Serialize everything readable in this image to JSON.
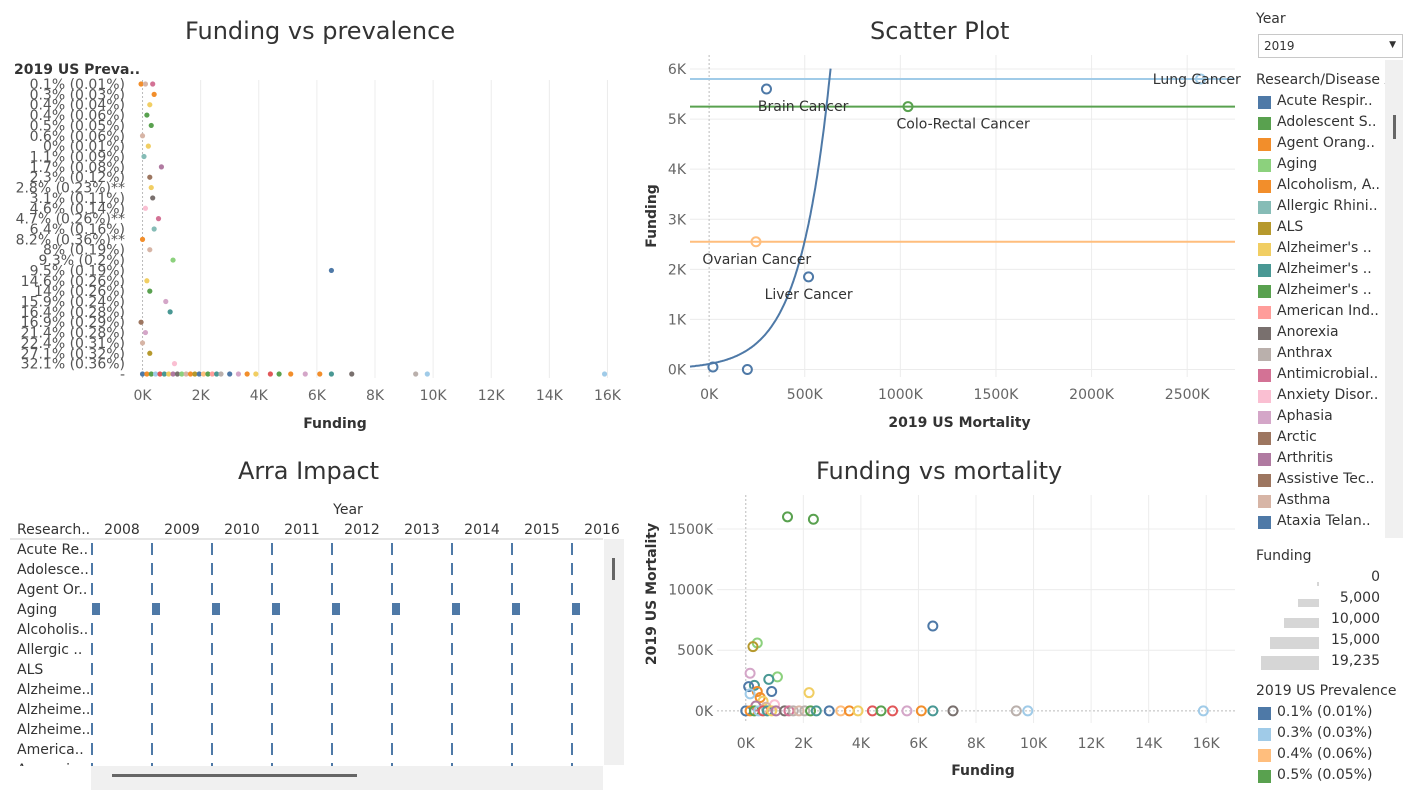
{
  "colors": {
    "blue": "#4e79a7",
    "light_blue": "#a0cbe8",
    "orange": "#f28e2b",
    "light_orange": "#ffbe7d",
    "green": "#59a14f",
    "light_green": "#8cd17d",
    "olive": "#b6992d",
    "yellow": "#f1ce63",
    "teal": "#499894",
    "light_teal": "#86bcb6",
    "red": "#e15759",
    "pink": "#ff9d9a",
    "gray": "#79706e",
    "light_gray": "#bab0ac",
    "magenta": "#d37295",
    "light_pink": "#fabfd2",
    "purple": "#b07aa1",
    "light_purple": "#d4a6c8",
    "brown": "#9d7660",
    "tan": "#d7b5a6"
  },
  "chart_data": [
    {
      "id": "funding_vs_prevalence",
      "type": "scatter",
      "title": "Funding vs prevalence",
      "row_header": "2019 US Preva..",
      "xlabel": "Funding",
      "xlim": [
        -500,
        16500
      ],
      "x_ticks": [
        "0K",
        "2K",
        "4K",
        "6K",
        "8K",
        "10K",
        "12K",
        "14K",
        "16K"
      ],
      "rows": [
        "0.1% (0.01%)",
        "0.3% (0.03%)",
        "0.4% (0.04%)",
        "0.4% (0.06%)",
        "0.5% (0.05%)",
        "0.6% (0.06%)",
        "0% (0.01%)",
        "1.1% (0.09%)",
        "1.7% (0.08%)",
        "2.3% (0.12%)",
        "2.8% (0.23%)**",
        "3.1% (0.11%)",
        "4.6% (0.14%)",
        "4.7% (0.26%)**",
        "6.4% (0.16%)",
        "8.2% (0.36%)**",
        "8% (0.19%)",
        "9.3% (0.2%)",
        "9.5% (0.19%)",
        "14.6% (0.26%)",
        "14% (0.26%)",
        "15.9% (0.24%)",
        "16.4% (0.28%)",
        "16.9% (0.29%)",
        "21.4% (0.28%)",
        "22.4% (0.31%)",
        "27.1% (0.32%)",
        "32.1% (0.36%)",
        "-"
      ],
      "points": [
        {
          "row": 0,
          "x": -50,
          "c": "orange"
        },
        {
          "row": 0,
          "x": 100,
          "c": "tan"
        },
        {
          "row": 0,
          "x": 350,
          "c": "magenta"
        },
        {
          "row": 1,
          "x": 400,
          "c": "orange"
        },
        {
          "row": 2,
          "x": 250,
          "c": "yellow"
        },
        {
          "row": 3,
          "x": 150,
          "c": "green"
        },
        {
          "row": 4,
          "x": 300,
          "c": "green"
        },
        {
          "row": 5,
          "x": 0,
          "c": "tan"
        },
        {
          "row": 6,
          "x": 200,
          "c": "yellow"
        },
        {
          "row": 7,
          "x": 50,
          "c": "light_teal"
        },
        {
          "row": 8,
          "x": 650,
          "c": "purple"
        },
        {
          "row": 9,
          "x": 250,
          "c": "brown"
        },
        {
          "row": 10,
          "x": 300,
          "c": "yellow"
        },
        {
          "row": 11,
          "x": 350,
          "c": "gray"
        },
        {
          "row": 12,
          "x": 100,
          "c": "light_pink"
        },
        {
          "row": 13,
          "x": 550,
          "c": "magenta"
        },
        {
          "row": 14,
          "x": 400,
          "c": "light_teal"
        },
        {
          "row": 15,
          "x": 0,
          "c": "orange"
        },
        {
          "row": 16,
          "x": 250,
          "c": "tan"
        },
        {
          "row": 17,
          "x": 1050,
          "c": "light_green"
        },
        {
          "row": 18,
          "x": 6500,
          "c": "blue"
        },
        {
          "row": 19,
          "x": 150,
          "c": "yellow"
        },
        {
          "row": 20,
          "x": 250,
          "c": "green"
        },
        {
          "row": 21,
          "x": 800,
          "c": "light_purple"
        },
        {
          "row": 22,
          "x": 950,
          "c": "teal"
        },
        {
          "row": 23,
          "x": -50,
          "c": "brown"
        },
        {
          "row": 24,
          "x": 100,
          "c": "light_purple"
        },
        {
          "row": 25,
          "x": 0,
          "c": "tan"
        },
        {
          "row": 26,
          "x": 250,
          "c": "olive"
        },
        {
          "row": 27,
          "x": 1100,
          "c": "light_pink"
        },
        {
          "row": 28,
          "x": 0,
          "c": "blue"
        },
        {
          "row": 28,
          "x": 150,
          "c": "orange"
        },
        {
          "row": 28,
          "x": 300,
          "c": "green"
        },
        {
          "row": 28,
          "x": 450,
          "c": "light_blue"
        },
        {
          "row": 28,
          "x": 600,
          "c": "red"
        },
        {
          "row": 28,
          "x": 750,
          "c": "teal"
        },
        {
          "row": 28,
          "x": 900,
          "c": "yellow"
        },
        {
          "row": 28,
          "x": 1050,
          "c": "purple"
        },
        {
          "row": 28,
          "x": 1200,
          "c": "gray"
        },
        {
          "row": 28,
          "x": 1350,
          "c": "light_green"
        },
        {
          "row": 28,
          "x": 1500,
          "c": "tan"
        },
        {
          "row": 28,
          "x": 1650,
          "c": "orange"
        },
        {
          "row": 28,
          "x": 1800,
          "c": "olive"
        },
        {
          "row": 28,
          "x": 1950,
          "c": "blue"
        },
        {
          "row": 28,
          "x": 2100,
          "c": "light_orange"
        },
        {
          "row": 28,
          "x": 2250,
          "c": "green"
        },
        {
          "row": 28,
          "x": 2400,
          "c": "pink"
        },
        {
          "row": 28,
          "x": 2550,
          "c": "teal"
        },
        {
          "row": 28,
          "x": 2700,
          "c": "light_gray"
        },
        {
          "row": 28,
          "x": 3000,
          "c": "blue"
        },
        {
          "row": 28,
          "x": 3300,
          "c": "light_purple"
        },
        {
          "row": 28,
          "x": 3600,
          "c": "orange"
        },
        {
          "row": 28,
          "x": 3900,
          "c": "yellow"
        },
        {
          "row": 28,
          "x": 4400,
          "c": "red"
        },
        {
          "row": 28,
          "x": 4700,
          "c": "green"
        },
        {
          "row": 28,
          "x": 5100,
          "c": "orange"
        },
        {
          "row": 28,
          "x": 5600,
          "c": "light_purple"
        },
        {
          "row": 28,
          "x": 6100,
          "c": "orange"
        },
        {
          "row": 28,
          "x": 6500,
          "c": "teal"
        },
        {
          "row": 28,
          "x": 7200,
          "c": "gray"
        },
        {
          "row": 28,
          "x": 9400,
          "c": "light_gray"
        },
        {
          "row": 28,
          "x": 9800,
          "c": "light_blue"
        },
        {
          "row": 28,
          "x": 15900,
          "c": "light_blue"
        }
      ]
    },
    {
      "id": "scatter_plot",
      "type": "scatter",
      "title": "Scatter Plot",
      "xlabel": "2019 US Mortality",
      "ylabel": "Funding",
      "xlim": [
        -100000,
        2750000
      ],
      "ylim": [
        -150,
        6200
      ],
      "x_ticks": [
        {
          "v": 0,
          "l": "0K"
        },
        {
          "v": 500000,
          "l": "500K"
        },
        {
          "v": 1000000,
          "l": "1000K"
        },
        {
          "v": 1500000,
          "l": "1500K"
        },
        {
          "v": 2000000,
          "l": "2000K"
        },
        {
          "v": 2500000,
          "l": "2500K"
        }
      ],
      "y_ticks": [
        {
          "v": 0,
          "l": "0K"
        },
        {
          "v": 1000,
          "l": "1K"
        },
        {
          "v": 2000,
          "l": "2K"
        },
        {
          "v": 3000,
          "l": "3K"
        },
        {
          "v": 4000,
          "l": "4K"
        },
        {
          "v": 5000,
          "l": "5K"
        },
        {
          "v": 6000,
          "l": "6K"
        }
      ],
      "ref_lines": [
        {
          "y": 5800,
          "c": "light_blue"
        },
        {
          "y": 5250,
          "c": "green"
        },
        {
          "y": 2550,
          "c": "light_orange"
        }
      ],
      "points": [
        {
          "x": 300000,
          "y": 5600,
          "c": "blue",
          "label": "Brain Cancer",
          "lx": -45000,
          "ly": -340
        },
        {
          "x": 1040000,
          "y": 5250,
          "c": "green",
          "label": "Colo-Rectal Cancer",
          "lx": -60000,
          "ly": -340
        },
        {
          "x": 2570000,
          "y": 5800,
          "c": "light_blue",
          "label": "Lung Cancer",
          "lx": -250000,
          "ly": 0
        },
        {
          "x": 245000,
          "y": 2550,
          "c": "light_orange",
          "label": "Ovarian Cancer",
          "lx": -280000,
          "ly": -340
        },
        {
          "x": 520000,
          "y": 1850,
          "c": "blue",
          "label": "Liver Cancer",
          "lx": -230000,
          "ly": -340
        },
        {
          "x": 20000,
          "y": 50,
          "c": "blue",
          "label": ""
        },
        {
          "x": 200000,
          "y": 0,
          "c": "blue",
          "label": ""
        }
      ],
      "trend": {
        "a": 110,
        "b": 6.3e-06
      }
    },
    {
      "id": "arra_impact",
      "type": "bar",
      "title": "Arra Impact",
      "column_header": "Year",
      "row_header": "Research..",
      "years": [
        "2008",
        "2009",
        "2010",
        "2011",
        "2012",
        "2013",
        "2014",
        "2015",
        "2016"
      ],
      "rows": [
        "Acute Re..",
        "Adolesce..",
        "Agent Or..",
        "Aging",
        "Alcoholis..",
        "Allergic ..",
        "ALS",
        "Alzheime..",
        "Alzheime..",
        "Alzheime..",
        "America..",
        "Anorexi.."
      ],
      "highlight_row": 3
    },
    {
      "id": "funding_vs_mortality",
      "type": "scatter",
      "title": "Funding vs mortality",
      "xlabel": "Funding",
      "ylabel": "2019 US Mortality",
      "xlim": [
        -1000,
        17000
      ],
      "ylim": [
        -100000,
        1780000
      ],
      "x_ticks": [
        {
          "v": 0,
          "l": "0K"
        },
        {
          "v": 2000,
          "l": "2K"
        },
        {
          "v": 4000,
          "l": "4K"
        },
        {
          "v": 6000,
          "l": "6K"
        },
        {
          "v": 8000,
          "l": "8K"
        },
        {
          "v": 10000,
          "l": "10K"
        },
        {
          "v": 12000,
          "l": "12K"
        },
        {
          "v": 14000,
          "l": "14K"
        },
        {
          "v": 16000,
          "l": "16K"
        }
      ],
      "y_ticks": [
        {
          "v": 0,
          "l": "0K"
        },
        {
          "v": 500000,
          "l": "500K"
        },
        {
          "v": 1000000,
          "l": "1000K"
        },
        {
          "v": 1500000,
          "l": "1500K"
        }
      ],
      "points": [
        {
          "x": 1450,
          "y": 1600000,
          "c": "green"
        },
        {
          "x": 2350,
          "y": 1580000,
          "c": "green"
        },
        {
          "x": 6500,
          "y": 700000,
          "c": "blue"
        },
        {
          "x": 400,
          "y": 560000,
          "c": "light_green"
        },
        {
          "x": 250,
          "y": 530000,
          "c": "olive"
        },
        {
          "x": 150,
          "y": 310000,
          "c": "light_purple"
        },
        {
          "x": 1100,
          "y": 280000,
          "c": "light_green"
        },
        {
          "x": 800,
          "y": 260000,
          "c": "teal"
        },
        {
          "x": 300,
          "y": 210000,
          "c": "teal"
        },
        {
          "x": 100,
          "y": 200000,
          "c": "blue"
        },
        {
          "x": 900,
          "y": 160000,
          "c": "blue"
        },
        {
          "x": 2200,
          "y": 150000,
          "c": "yellow"
        },
        {
          "x": 400,
          "y": 160000,
          "c": "orange"
        },
        {
          "x": 500,
          "y": 110000,
          "c": "orange"
        },
        {
          "x": 150,
          "y": 140000,
          "c": "light_blue"
        },
        {
          "x": 600,
          "y": 80000,
          "c": "yellow"
        },
        {
          "x": 1000,
          "y": 50000,
          "c": "light_pink"
        },
        {
          "x": 350,
          "y": 40000,
          "c": "purple"
        },
        {
          "x": 700,
          "y": 30000,
          "c": "tan"
        },
        {
          "x": 0,
          "y": 0,
          "c": "blue"
        },
        {
          "x": 150,
          "y": 0,
          "c": "orange"
        },
        {
          "x": 300,
          "y": 0,
          "c": "green"
        },
        {
          "x": 450,
          "y": 0,
          "c": "light_blue"
        },
        {
          "x": 600,
          "y": 0,
          "c": "red"
        },
        {
          "x": 750,
          "y": 0,
          "c": "teal"
        },
        {
          "x": 900,
          "y": 0,
          "c": "yellow"
        },
        {
          "x": 1050,
          "y": 0,
          "c": "purple"
        },
        {
          "x": 1350,
          "y": 0,
          "c": "gray"
        },
        {
          "x": 1500,
          "y": 0,
          "c": "magenta"
        },
        {
          "x": 1650,
          "y": 0,
          "c": "light_gray"
        },
        {
          "x": 1850,
          "y": 0,
          "c": "tan"
        },
        {
          "x": 2050,
          "y": 0,
          "c": "light_gray"
        },
        {
          "x": 2250,
          "y": 0,
          "c": "green"
        },
        {
          "x": 2450,
          "y": 0,
          "c": "teal"
        },
        {
          "x": 2900,
          "y": 0,
          "c": "blue"
        },
        {
          "x": 3300,
          "y": 0,
          "c": "light_orange"
        },
        {
          "x": 3600,
          "y": 0,
          "c": "orange"
        },
        {
          "x": 3900,
          "y": 0,
          "c": "yellow"
        },
        {
          "x": 4400,
          "y": 0,
          "c": "red"
        },
        {
          "x": 4700,
          "y": 0,
          "c": "green"
        },
        {
          "x": 5100,
          "y": 0,
          "c": "red"
        },
        {
          "x": 5600,
          "y": 0,
          "c": "light_purple"
        },
        {
          "x": 6100,
          "y": 0,
          "c": "orange"
        },
        {
          "x": 6500,
          "y": 0,
          "c": "teal"
        },
        {
          "x": 7200,
          "y": 0,
          "c": "gray"
        },
        {
          "x": 9400,
          "y": 0,
          "c": "light_gray"
        },
        {
          "x": 9800,
          "y": 0,
          "c": "light_blue"
        },
        {
          "x": 15900,
          "y": 0,
          "c": "light_blue"
        }
      ]
    }
  ],
  "sidebar": {
    "year_title": "Year",
    "year_value": "2019",
    "research_title": "Research/Disease A..",
    "research_items": [
      {
        "label": "Acute Respir..",
        "c": "blue"
      },
      {
        "label": "Adolescent S..",
        "c": "green"
      },
      {
        "label": "Agent Orang..",
        "c": "orange"
      },
      {
        "label": "Aging",
        "c": "light_green"
      },
      {
        "label": "Alcoholism, A..",
        "c": "orange"
      },
      {
        "label": "Allergic Rhini..",
        "c": "light_teal"
      },
      {
        "label": "ALS",
        "c": "olive"
      },
      {
        "label": "Alzheimer's ..",
        "c": "yellow"
      },
      {
        "label": "Alzheimer's ..",
        "c": "teal"
      },
      {
        "label": "Alzheimer's ..",
        "c": "green"
      },
      {
        "label": "American Ind..",
        "c": "pink"
      },
      {
        "label": "Anorexia",
        "c": "gray"
      },
      {
        "label": "Anthrax",
        "c": "light_gray"
      },
      {
        "label": "Antimicrobial..",
        "c": "magenta"
      },
      {
        "label": "Anxiety Disor..",
        "c": "light_pink"
      },
      {
        "label": "Aphasia",
        "c": "light_purple"
      },
      {
        "label": "Arctic",
        "c": "brown"
      },
      {
        "label": "Arthritis",
        "c": "purple"
      },
      {
        "label": "Assistive Tec..",
        "c": "brown"
      },
      {
        "label": "Asthma",
        "c": "tan"
      },
      {
        "label": "Ataxia Telan..",
        "c": "blue"
      }
    ],
    "funding_title": "Funding",
    "funding_sizes": [
      {
        "label": "0",
        "w": 0.03
      },
      {
        "label": "5,000",
        "w": 0.36
      },
      {
        "label": "10,000",
        "w": 0.6
      },
      {
        "label": "15,000",
        "w": 0.84
      },
      {
        "label": "19,235",
        "w": 1.0
      }
    ],
    "prevalence_title": "2019 US Prevalence",
    "prevalence_items": [
      {
        "label": "0.1% (0.01%)",
        "c": "blue"
      },
      {
        "label": "0.3% (0.03%)",
        "c": "light_blue"
      },
      {
        "label": "0.4% (0.06%)",
        "c": "light_orange"
      },
      {
        "label": "0.5% (0.05%)",
        "c": "green"
      }
    ]
  }
}
